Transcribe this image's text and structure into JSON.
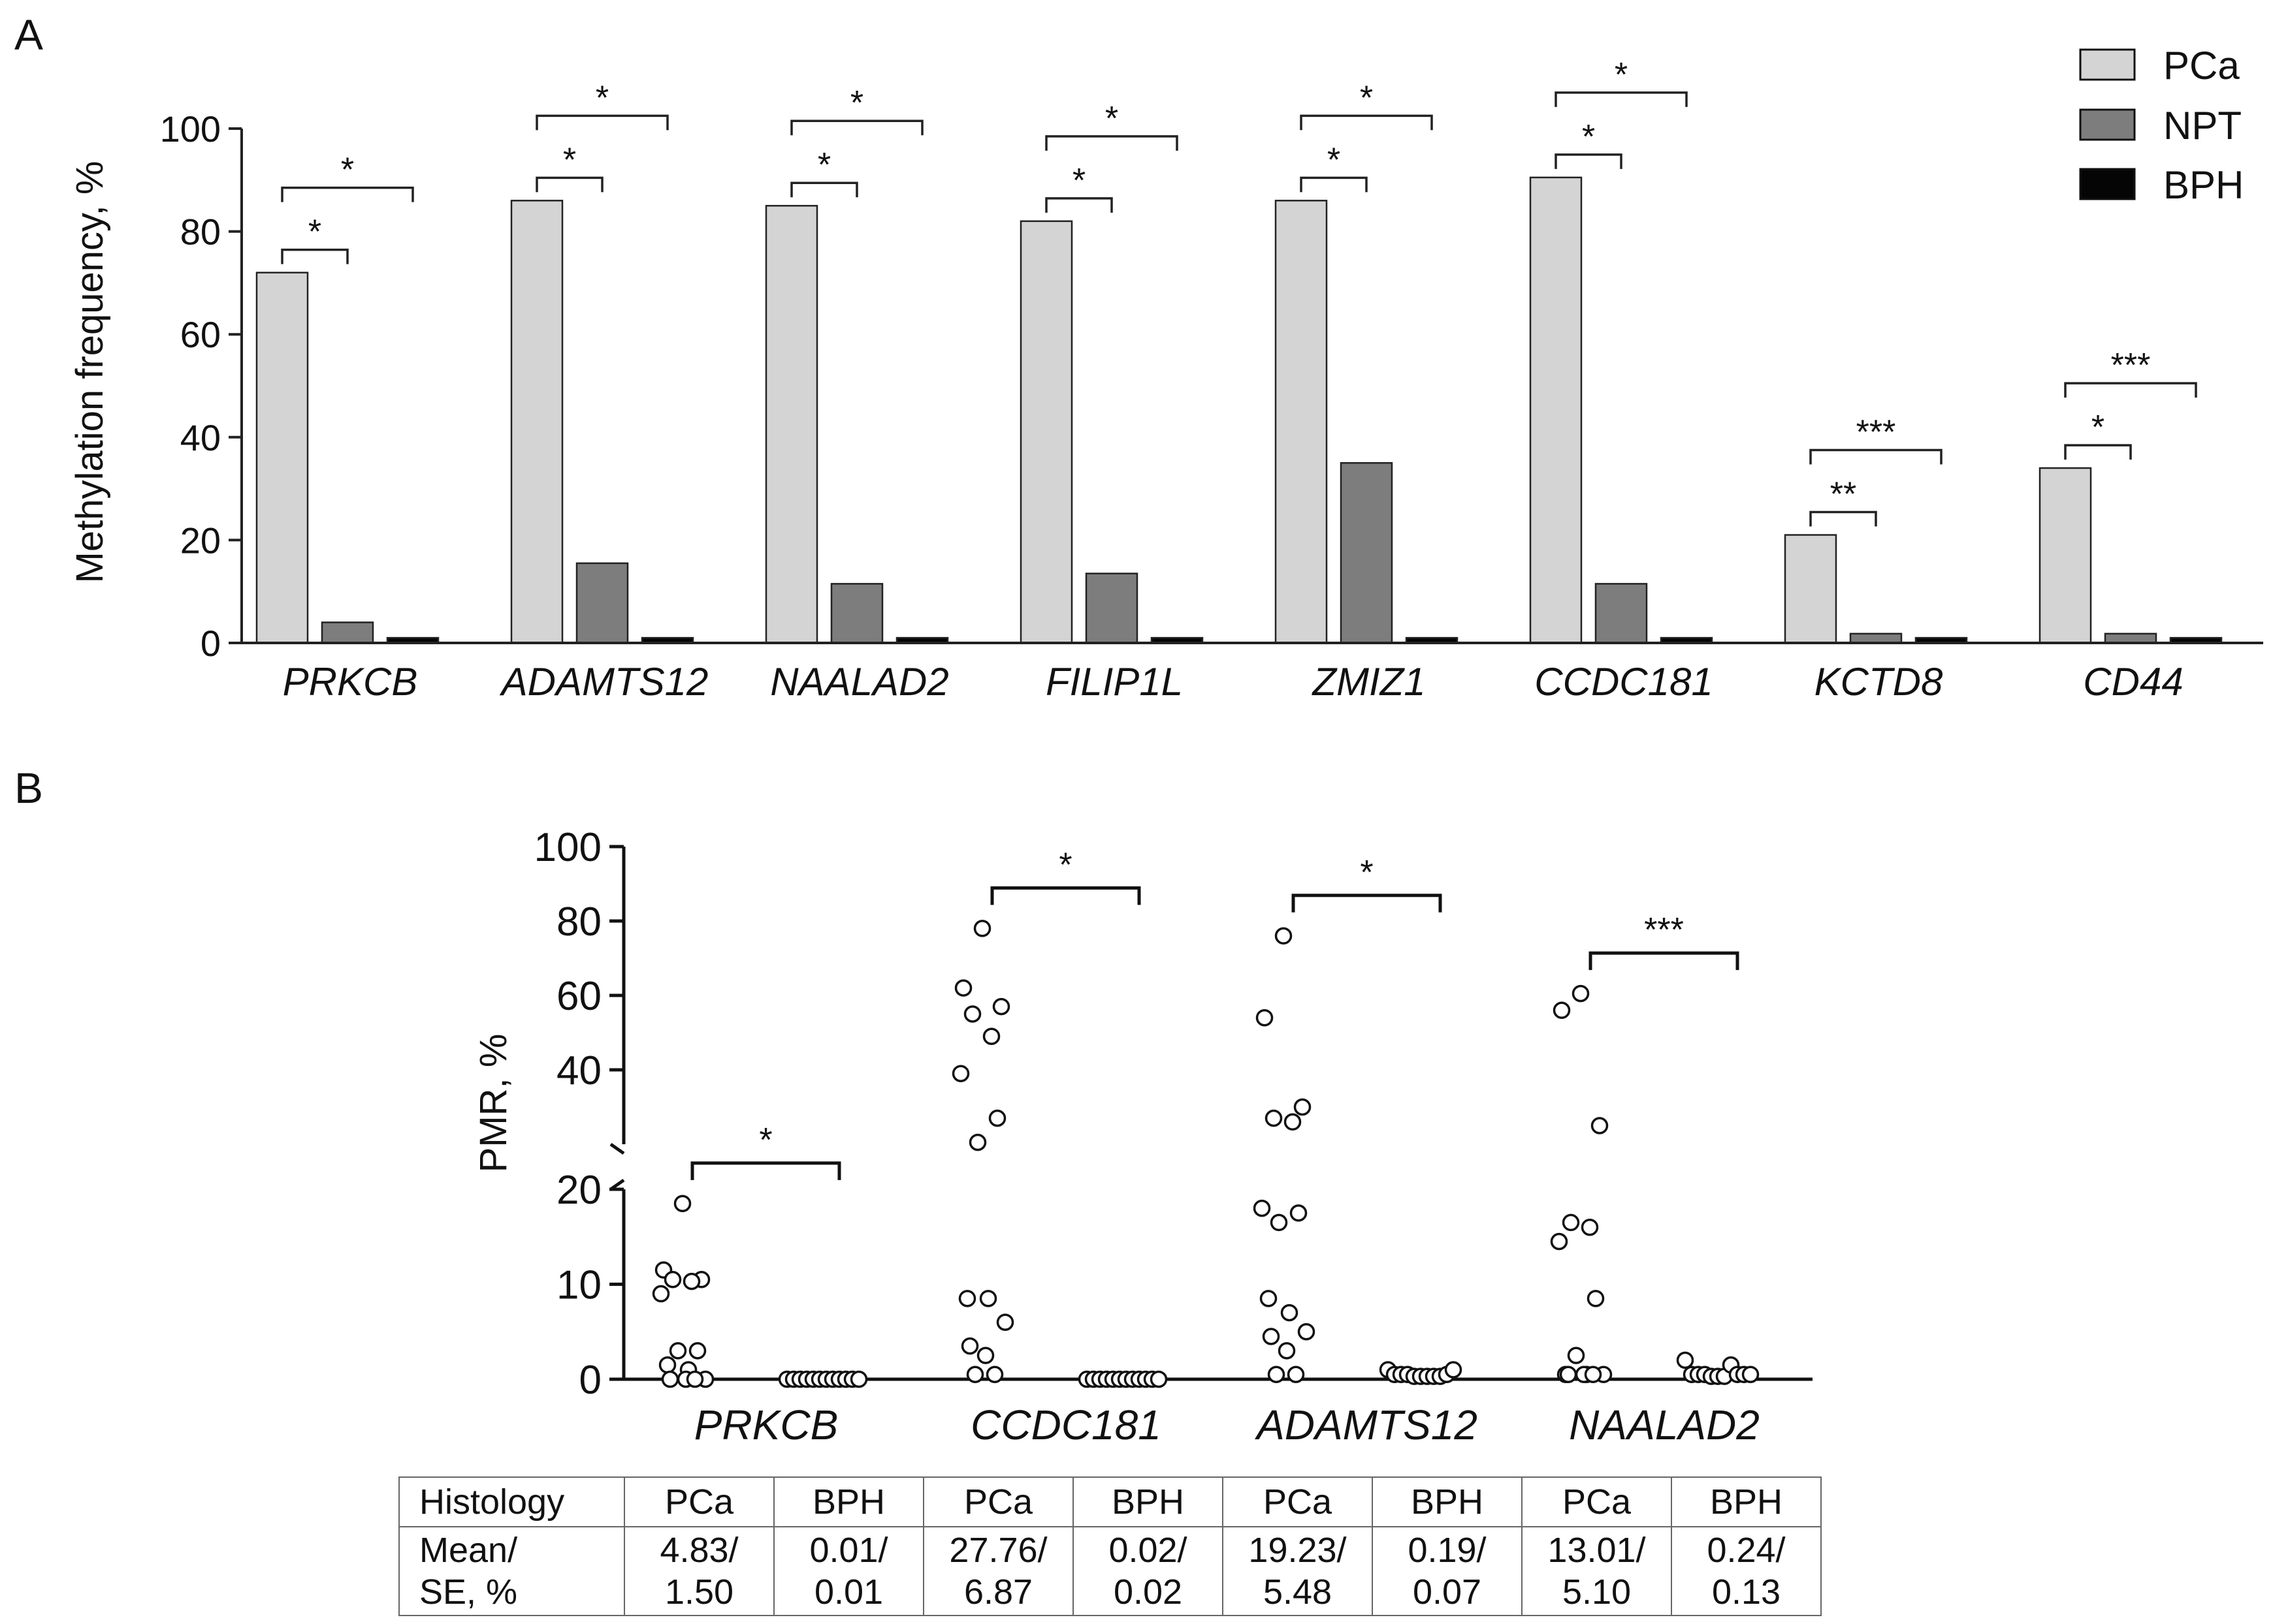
{
  "panel_a": {
    "label": "A",
    "legend": [
      {
        "name": "PCa",
        "color": "#d4d4d4"
      },
      {
        "name": "NPT",
        "color": "#7d7d7d"
      },
      {
        "name": "BPH",
        "color": "#050505"
      }
    ]
  },
  "panel_b": {
    "label": "B",
    "table": {
      "header": [
        "Histology",
        "PCa",
        "BPH",
        "PCa",
        "BPH",
        "PCa",
        "BPH",
        "PCa",
        "BPH"
      ],
      "row_label": [
        "Mean/",
        "SE, %"
      ],
      "cells": [
        [
          "4.83/",
          "1.50"
        ],
        [
          "0.01/",
          "0.01"
        ],
        [
          "27.76/",
          "6.87"
        ],
        [
          "0.02/",
          "0.02"
        ],
        [
          "19.23/",
          "5.48"
        ],
        [
          "0.19/",
          "0.07"
        ],
        [
          "13.01/",
          "5.10"
        ],
        [
          "0.24/",
          "0.13"
        ]
      ]
    }
  },
  "chart_data": [
    {
      "type": "bar",
      "title": "",
      "xlabel": "",
      "ylabel": "Methylation frequency, %",
      "ylim": [
        0,
        100
      ],
      "yticks": [
        0,
        20,
        40,
        60,
        80,
        100
      ],
      "categories": [
        "PRKCB",
        "ADAMTS12",
        "NAALAD2",
        "FILIP1L",
        "ZMIZ1",
        "CCDC181",
        "KCTD8",
        "CD44"
      ],
      "series": [
        {
          "name": "PCa",
          "color": "#d4d4d4",
          "values": [
            72,
            86,
            85,
            82,
            86,
            90.5,
            21,
            34
          ]
        },
        {
          "name": "NPT",
          "color": "#7d7d7d",
          "values": [
            4,
            15.5,
            11.5,
            13.5,
            35,
            11.5,
            1.8,
            1.8
          ]
        },
        {
          "name": "BPH",
          "color": "#050505",
          "values": [
            1,
            1,
            1,
            1,
            1,
            1,
            1,
            1
          ]
        }
      ],
      "significance": [
        {
          "category": "PRKCB",
          "pair": [
            "PCa",
            "NPT"
          ],
          "label": "*"
        },
        {
          "category": "PRKCB",
          "pair": [
            "PCa",
            "BPH"
          ],
          "label": "*"
        },
        {
          "category": "ADAMTS12",
          "pair": [
            "PCa",
            "NPT"
          ],
          "label": "*"
        },
        {
          "category": "ADAMTS12",
          "pair": [
            "PCa",
            "BPH"
          ],
          "label": "*"
        },
        {
          "category": "NAALAD2",
          "pair": [
            "PCa",
            "NPT"
          ],
          "label": "*"
        },
        {
          "category": "NAALAD2",
          "pair": [
            "PCa",
            "BPH"
          ],
          "label": "*"
        },
        {
          "category": "FILIP1L",
          "pair": [
            "PCa",
            "NPT"
          ],
          "label": "*"
        },
        {
          "category": "FILIP1L",
          "pair": [
            "PCa",
            "BPH"
          ],
          "label": "*"
        },
        {
          "category": "ZMIZ1",
          "pair": [
            "PCa",
            "NPT"
          ],
          "label": "*"
        },
        {
          "category": "ZMIZ1",
          "pair": [
            "PCa",
            "BPH"
          ],
          "label": "*"
        },
        {
          "category": "CCDC181",
          "pair": [
            "PCa",
            "NPT"
          ],
          "label": "*"
        },
        {
          "category": "CCDC181",
          "pair": [
            "PCa",
            "BPH"
          ],
          "label": "*"
        },
        {
          "category": "KCTD8",
          "pair": [
            "PCa",
            "NPT"
          ],
          "label": "**"
        },
        {
          "category": "KCTD8",
          "pair": [
            "PCa",
            "BPH"
          ],
          "label": "***"
        },
        {
          "category": "CD44",
          "pair": [
            "PCa",
            "NPT"
          ],
          "label": "*"
        },
        {
          "category": "CD44",
          "pair": [
            "PCa",
            "BPH"
          ],
          "label": "***"
        }
      ]
    },
    {
      "type": "scatter",
      "title": "",
      "xlabel": "",
      "ylabel": "PMR, %",
      "ylim": [
        0,
        100
      ],
      "y_axis_break": {
        "lower": [
          0,
          20
        ],
        "upper": [
          20,
          100
        ]
      },
      "yticks": [
        0,
        10,
        20,
        40,
        60,
        80,
        100
      ],
      "categories": [
        "PRKCB",
        "CCDC181",
        "ADAMTS12",
        "NAALAD2"
      ],
      "groups": [
        {
          "gene": "PRKCB",
          "PCa": [
            18.5,
            11.5,
            10.5,
            10.5,
            10.3,
            9,
            3,
            3,
            1.5,
            1,
            0,
            0,
            0,
            0
          ],
          "BPH": [
            0,
            0,
            0,
            0,
            0,
            0,
            0,
            0,
            0,
            0,
            0,
            0
          ],
          "significance": "*"
        },
        {
          "gene": "CCDC181",
          "PCa": [
            78,
            62,
            57,
            55,
            49,
            39,
            27,
            20.5,
            8.5,
            8.5,
            6,
            3.5,
            2.5,
            0.5,
            0.5
          ],
          "BPH": [
            0,
            0,
            0,
            0,
            0,
            0,
            0,
            0,
            0,
            0,
            0,
            0
          ],
          "significance": "*"
        },
        {
          "gene": "ADAMTS12",
          "PCa": [
            76,
            54,
            30,
            27,
            26,
            18,
            17.5,
            16.5,
            8.5,
            7,
            5,
            4.5,
            3,
            0.5,
            0.5
          ],
          "BPH": [
            1,
            0.5,
            0.5,
            0.5,
            0.3,
            0.3,
            0.3,
            0.3,
            0.3,
            0.5,
            1
          ],
          "significance": "*"
        },
        {
          "gene": "NAALAD2",
          "PCa": [
            60.5,
            56,
            25,
            16.5,
            16,
            14.5,
            8.5,
            2.5,
            0.5,
            0.5,
            0.5,
            0.5,
            0.5,
            0.5
          ],
          "BPH": [
            2,
            0.5,
            0.5,
            0.5,
            0.3,
            0.3,
            0.3,
            1.5,
            0.5,
            0.5,
            0.5
          ],
          "significance": "***"
        }
      ]
    }
  ]
}
